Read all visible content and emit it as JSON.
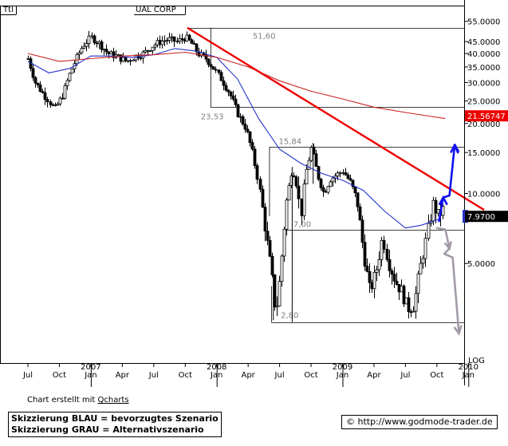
{
  "chart_data": {
    "type": "candlestick",
    "title": "UAL CORP",
    "corner_label": "Ttl",
    "scale": "log",
    "scale_label": "LOG",
    "ylim": [
      2.1,
      58
    ],
    "y_ticks": [
      {
        "v": 55,
        "label": "55.0000"
      },
      {
        "v": 45,
        "label": "45.0000"
      },
      {
        "v": 40,
        "label": "40.0000"
      },
      {
        "v": 35,
        "label": "35.0000"
      },
      {
        "v": 30,
        "label": "30.0000"
      },
      {
        "v": 25,
        "label": "25.0000"
      },
      {
        "v": 20,
        "label": "20.0000"
      },
      {
        "v": 15,
        "label": "15.0000"
      },
      {
        "v": 10,
        "label": "10.0000"
      },
      {
        "v": 5,
        "label": "5.0000"
      }
    ],
    "x_ticks": [
      {
        "m": 0,
        "label": "Jul"
      },
      {
        "m": 3,
        "label": "Oct"
      },
      {
        "m": 6,
        "label": "Jan"
      },
      {
        "m": 9,
        "label": "Apr"
      },
      {
        "m": 12,
        "label": "Jul"
      },
      {
        "m": 15,
        "label": "Oct"
      },
      {
        "m": 18,
        "label": "Jan"
      },
      {
        "m": 21,
        "label": "Apr"
      },
      {
        "m": 24,
        "label": "Jul"
      },
      {
        "m": 27,
        "label": "Oct"
      },
      {
        "m": 30,
        "label": "Jan"
      },
      {
        "m": 33,
        "label": "Apr"
      },
      {
        "m": 36,
        "label": "Jul"
      },
      {
        "m": 39,
        "label": "Oct"
      },
      {
        "m": 42,
        "label": "Jan"
      }
    ],
    "years": [
      {
        "m": 6,
        "label": "2007"
      },
      {
        "m": 18,
        "label": "2008"
      },
      {
        "m": 30,
        "label": "2009"
      },
      {
        "m": 42,
        "label": "2010"
      }
    ],
    "price_path": [
      [
        0.0,
        38
      ],
      [
        0.7,
        30
      ],
      [
        1.4,
        27
      ],
      [
        2.0,
        25
      ],
      [
        2.5,
        23
      ],
      [
        3.2,
        26
      ],
      [
        4.0,
        33
      ],
      [
        4.6,
        38
      ],
      [
        5.2,
        43
      ],
      [
        6.0,
        47
      ],
      [
        6.8,
        44
      ],
      [
        7.6,
        40
      ],
      [
        8.4,
        39
      ],
      [
        9.4,
        37
      ],
      [
        10.2,
        39
      ],
      [
        11.0,
        40
      ],
      [
        11.8,
        43
      ],
      [
        12.6,
        45
      ],
      [
        13.4,
        46
      ],
      [
        14.2,
        45
      ],
      [
        15.0,
        47
      ],
      [
        15.6,
        44
      ],
      [
        16.2,
        40
      ],
      [
        17.0,
        38
      ],
      [
        17.6,
        35
      ],
      [
        18.4,
        31
      ],
      [
        19.2,
        27
      ],
      [
        20.0,
        22
      ],
      [
        20.8,
        19
      ],
      [
        21.4,
        15
      ],
      [
        22.0,
        11
      ],
      [
        22.6,
        7
      ],
      [
        23.2,
        4.5
      ],
      [
        23.6,
        3.0
      ],
      [
        24.0,
        4.3
      ],
      [
        24.6,
        9
      ],
      [
        25.2,
        13
      ],
      [
        25.6,
        11
      ],
      [
        26.0,
        8
      ],
      [
        26.4,
        12
      ],
      [
        27.0,
        15.8
      ],
      [
        27.6,
        12
      ],
      [
        28.2,
        10
      ],
      [
        28.8,
        11.5
      ],
      [
        29.4,
        12
      ],
      [
        30.0,
        12.5
      ],
      [
        30.8,
        11
      ],
      [
        31.4,
        9
      ],
      [
        32.0,
        5.5
      ],
      [
        32.6,
        3.8
      ],
      [
        33.2,
        4.6
      ],
      [
        33.8,
        6.5
      ],
      [
        34.4,
        5.0
      ],
      [
        35.0,
        4.2
      ],
      [
        35.6,
        3.8
      ],
      [
        36.2,
        3.2
      ],
      [
        36.8,
        3.3
      ],
      [
        37.4,
        4.8
      ],
      [
        38.0,
        6.5
      ],
      [
        38.6,
        9.0
      ],
      [
        39.1,
        8.0
      ],
      [
        39.6,
        8.6
      ]
    ],
    "series": [
      {
        "name": "",
        "kind": "moving_average",
        "color": "#2233cc",
        "points": [
          [
            0.0,
            37
          ],
          [
            2.0,
            33
          ],
          [
            4.0,
            34.5
          ],
          [
            6.0,
            39
          ],
          [
            8.0,
            39
          ],
          [
            10.0,
            38.5
          ],
          [
            12.0,
            39.5
          ],
          [
            14.0,
            42
          ],
          [
            16.0,
            41
          ],
          [
            18.0,
            38.5
          ],
          [
            20.0,
            31
          ],
          [
            22.0,
            21
          ],
          [
            24.0,
            15.5
          ],
          [
            26.0,
            13.5
          ],
          [
            28.0,
            12.2
          ],
          [
            30.0,
            11.4
          ],
          [
            32.0,
            10.3
          ],
          [
            34.0,
            8.4
          ],
          [
            36.0,
            7.1
          ],
          [
            37.5,
            7.3
          ],
          [
            39.4,
            7.8
          ]
        ]
      },
      {
        "name": "",
        "kind": "moving_average",
        "color": "#cc2222",
        "points": [
          [
            0.0,
            40
          ],
          [
            3.0,
            37
          ],
          [
            6.0,
            38
          ],
          [
            9.0,
            39
          ],
          [
            12.0,
            39.5
          ],
          [
            15.0,
            40.5
          ],
          [
            18.0,
            38.5
          ],
          [
            21.0,
            35
          ],
          [
            24.0,
            30.5
          ],
          [
            27.0,
            27.5
          ],
          [
            30.0,
            25.5
          ],
          [
            33.0,
            23.5
          ],
          [
            36.0,
            22.3
          ],
          [
            38.0,
            21.6
          ],
          [
            39.8,
            21.0
          ]
        ]
      }
    ],
    "trendline": {
      "color": "#ee0000",
      "start": [
        15.2,
        51.6
      ],
      "end": [
        43.5,
        8.5
      ]
    },
    "levels": [
      {
        "label": "51,60",
        "value": 51.6,
        "x_from": 15.2
      },
      {
        "label": "23,53",
        "value": 23.53,
        "x_from": 17.4
      },
      {
        "label": "15,84",
        "value": 15.84,
        "x_from": 23.0
      },
      {
        "label": "7,00",
        "value": 7.0,
        "x_from": 24.4
      },
      {
        "label": "2,80",
        "value": 2.8,
        "x_from": 23.2
      }
    ],
    "markers": [
      {
        "label": "21.56747",
        "value": 21.56747,
        "bg": "#ee0000",
        "fg": "#ffffff"
      },
      {
        "label": "7.9700",
        "value": 7.97,
        "bg": "#000000",
        "fg": "#ffffff",
        "accent": "#2233cc"
      }
    ],
    "scenarios": [
      {
        "name": "preferred",
        "color": "#1111ee",
        "points": [
          [
            39.2,
            7.6
          ],
          [
            39.6,
            9.6
          ],
          [
            40.2,
            9.8
          ],
          [
            40.7,
            16.2
          ],
          [
            41.0,
            15.0
          ]
        ]
      },
      {
        "name": "alternative",
        "color": "#a39aa8",
        "points": [
          [
            39.0,
            7.1
          ],
          [
            39.8,
            7.0
          ],
          [
            40.2,
            5.8
          ],
          [
            39.7,
            5.5
          ],
          [
            40.5,
            5.3
          ],
          [
            41.1,
            2.5
          ]
        ]
      }
    ]
  },
  "footer": {
    "credit_prefix": "Chart erstellt mit ",
    "credit_link": "Qcharts",
    "legend_blue": "Skizzierung BLAU = bevorzugtes Szenario",
    "legend_grey": "Skizzierung GRAU = Alternativszenario",
    "copyright": "© http://www.godmode-trader.de"
  }
}
